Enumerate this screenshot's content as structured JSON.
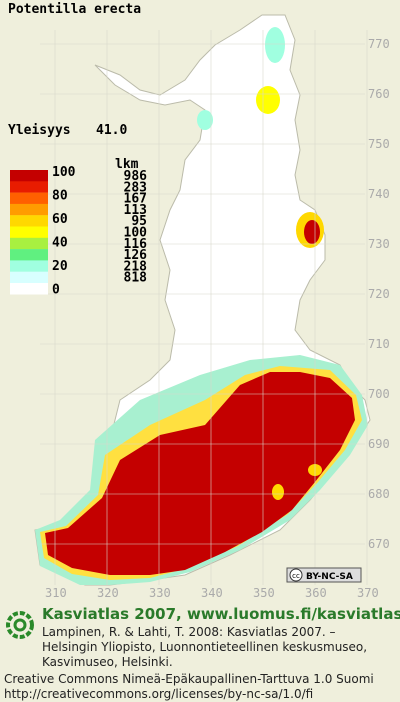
{
  "header": {
    "title": "Potentilla erecta",
    "frequency_label": "Yleisyys",
    "frequency_value": "41.0"
  },
  "legend": {
    "count_header": "lkm",
    "scale": [
      100,
      80,
      60,
      40,
      20,
      0
    ],
    "counts": [
      986,
      283,
      167,
      113,
      95,
      100,
      116,
      126,
      218,
      818
    ],
    "colors": [
      "#c40000",
      "#e81c00",
      "#ff6000",
      "#ff9c00",
      "#ffd800",
      "#ffff00",
      "#a8f040",
      "#60f080",
      "#a0ffe0",
      "#d8ffff",
      "#ffffff"
    ]
  },
  "map": {
    "y_labels": [
      770,
      760,
      750,
      740,
      730,
      720,
      710,
      700,
      690,
      680,
      670
    ],
    "x_labels": [
      310,
      320,
      330,
      340,
      350,
      360,
      370
    ],
    "license_badge": {
      "icon": "cc",
      "text": "BY-NC-SA"
    }
  },
  "footer": {
    "site": "Kasviatlas 2007, www.luomus.fi/kasviatlas",
    "citation": [
      "Lampinen, R. & Lahti, T. 2008: Kasviatlas 2007. –",
      "Helsingin Yliopisto, Luonnontieteellinen keskusmuseo,",
      "Kasvimuseo, Helsinki."
    ],
    "license": [
      "Creative Commons Nimeä-Epäkaupallinen-Tarttuva 1.0 Suomi",
      "http://creativecommons.org/licenses/by-nc-sa/1.0/fi"
    ]
  }
}
